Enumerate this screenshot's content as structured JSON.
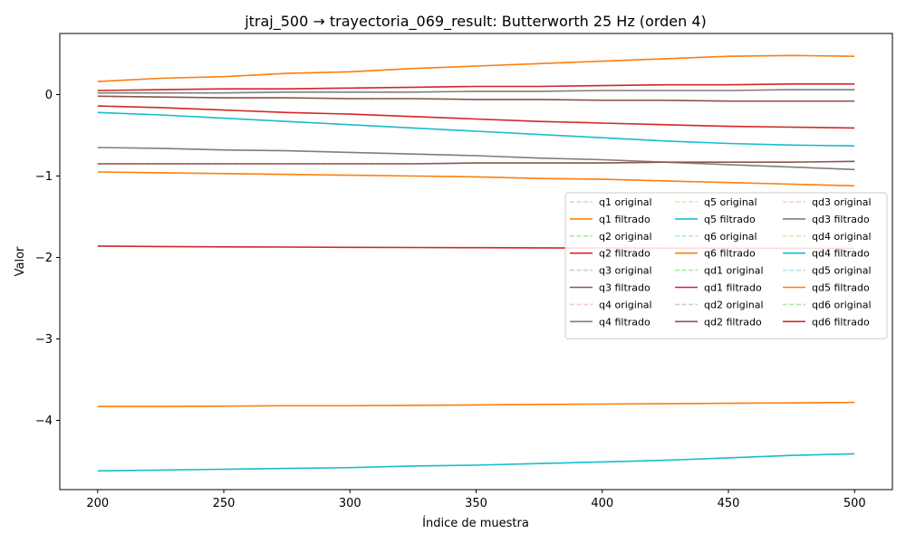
{
  "chart_data": {
    "type": "line",
    "title": "jtraj_500 → trayectoria_069_result: Butterworth 25 Hz (orden 4)",
    "xlabel": "Índice de muestra",
    "ylabel": "Valor",
    "xlim": [
      185,
      515
    ],
    "ylim": [
      -4.85,
      0.75
    ],
    "xticks": [
      200,
      250,
      300,
      350,
      400,
      450,
      500
    ],
    "yticks": [
      0,
      -1,
      -2,
      -3,
      -4
    ],
    "ytick_labels": [
      "0",
      "−1",
      "−2",
      "−3",
      "−4"
    ],
    "grid": false,
    "legend_position": "center-right",
    "legend_columns": 3,
    "x": [
      200,
      225,
      250,
      275,
      300,
      325,
      350,
      375,
      400,
      425,
      450,
      475,
      500
    ],
    "series": [
      {
        "name": "q1 original",
        "color": "#aec7e8",
        "dashed": true,
        "values": [
          0.16,
          0.2,
          0.22,
          0.26,
          0.28,
          0.32,
          0.35,
          0.38,
          0.41,
          0.44,
          0.47,
          0.48,
          0.47
        ]
      },
      {
        "name": "q1 filtrado",
        "color": "#ff7f0e",
        "dashed": false,
        "values": [
          0.16,
          0.2,
          0.22,
          0.26,
          0.28,
          0.32,
          0.35,
          0.38,
          0.41,
          0.44,
          0.47,
          0.48,
          0.47
        ]
      },
      {
        "name": "q2 original",
        "color": "#98df8a",
        "dashed": true,
        "values": [
          0.05,
          0.06,
          0.07,
          0.07,
          0.08,
          0.09,
          0.1,
          0.1,
          0.11,
          0.12,
          0.12,
          0.13,
          0.13
        ]
      },
      {
        "name": "q2 filtrado",
        "color": "#d62728",
        "dashed": false,
        "values": [
          0.05,
          0.06,
          0.07,
          0.07,
          0.08,
          0.09,
          0.1,
          0.1,
          0.11,
          0.12,
          0.12,
          0.13,
          0.13
        ]
      },
      {
        "name": "q3 original",
        "color": "#c5b0d5",
        "dashed": true,
        "values": [
          -0.02,
          -0.03,
          -0.04,
          -0.04,
          -0.05,
          -0.05,
          -0.06,
          -0.06,
          -0.07,
          -0.07,
          -0.08,
          -0.08,
          -0.08
        ]
      },
      {
        "name": "q3 filtrado",
        "color": "#8c564b",
        "dashed": false,
        "values": [
          -0.02,
          -0.03,
          -0.04,
          -0.04,
          -0.05,
          -0.05,
          -0.06,
          -0.06,
          -0.07,
          -0.07,
          -0.08,
          -0.08,
          -0.08
        ]
      },
      {
        "name": "q4 original",
        "color": "#f7b6d2",
        "dashed": true,
        "values": [
          -0.65,
          -0.66,
          -0.68,
          -0.69,
          -0.71,
          -0.73,
          -0.75,
          -0.78,
          -0.8,
          -0.83,
          -0.86,
          -0.89,
          -0.92
        ]
      },
      {
        "name": "q4 filtrado",
        "color": "#7f7f7f",
        "dashed": false,
        "values": [
          -0.65,
          -0.66,
          -0.68,
          -0.69,
          -0.71,
          -0.73,
          -0.75,
          -0.78,
          -0.8,
          -0.83,
          -0.86,
          -0.89,
          -0.92
        ]
      },
      {
        "name": "q5 original",
        "color": "#dbdb8d",
        "dashed": true,
        "values": [
          -0.22,
          -0.25,
          -0.29,
          -0.33,
          -0.37,
          -0.41,
          -0.45,
          -0.49,
          -0.53,
          -0.57,
          -0.6,
          -0.62,
          -0.63
        ]
      },
      {
        "name": "q5 filtrado",
        "color": "#17becf",
        "dashed": false,
        "values": [
          -0.22,
          -0.25,
          -0.29,
          -0.33,
          -0.37,
          -0.41,
          -0.45,
          -0.49,
          -0.53,
          -0.57,
          -0.6,
          -0.62,
          -0.63
        ]
      },
      {
        "name": "q6 original",
        "color": "#9edae5",
        "dashed": true,
        "values": [
          -0.95,
          -0.96,
          -0.97,
          -0.98,
          -0.99,
          -1.0,
          -1.01,
          -1.03,
          -1.04,
          -1.06,
          -1.08,
          -1.1,
          -1.12
        ]
      },
      {
        "name": "q6 filtrado",
        "color": "#ff7f0e",
        "dashed": false,
        "values": [
          -0.95,
          -0.96,
          -0.97,
          -0.98,
          -0.99,
          -1.0,
          -1.01,
          -1.03,
          -1.04,
          -1.06,
          -1.08,
          -1.1,
          -1.12
        ]
      },
      {
        "name": "qd1 original",
        "color": "#98df8a",
        "dashed": true,
        "values": [
          -1.86,
          -1.865,
          -1.87,
          -1.872,
          -1.875,
          -1.878,
          -1.88,
          -1.882,
          -1.884,
          -1.886,
          -1.887,
          -1.888,
          -1.89
        ]
      },
      {
        "name": "qd1 filtrado",
        "color": "#d62728",
        "dashed": false,
        "values": [
          -1.86,
          -1.865,
          -1.87,
          -1.872,
          -1.875,
          -1.878,
          -1.88,
          -1.882,
          -1.884,
          -1.886,
          -1.887,
          -1.888,
          -1.89
        ]
      },
      {
        "name": "qd2 original",
        "color": "#c5b0d5",
        "dashed": true,
        "values": [
          -0.85,
          -0.85,
          -0.85,
          -0.85,
          -0.85,
          -0.85,
          -0.84,
          -0.84,
          -0.84,
          -0.83,
          -0.83,
          -0.83,
          -0.82
        ]
      },
      {
        "name": "qd2 filtrado",
        "color": "#8c564b",
        "dashed": false,
        "values": [
          -0.85,
          -0.85,
          -0.85,
          -0.85,
          -0.85,
          -0.85,
          -0.84,
          -0.84,
          -0.84,
          -0.83,
          -0.83,
          -0.83,
          -0.82
        ]
      },
      {
        "name": "qd3 original",
        "color": "#f7b6d2",
        "dashed": true,
        "values": [
          0.02,
          0.02,
          0.02,
          0.03,
          0.03,
          0.03,
          0.04,
          0.04,
          0.05,
          0.05,
          0.05,
          0.06,
          0.06
        ]
      },
      {
        "name": "qd3 filtrado",
        "color": "#7f7f7f",
        "dashed": false,
        "values": [
          0.02,
          0.02,
          0.02,
          0.03,
          0.03,
          0.03,
          0.04,
          0.04,
          0.05,
          0.05,
          0.05,
          0.06,
          0.06
        ]
      },
      {
        "name": "qd4 original",
        "color": "#dbdb8d",
        "dashed": true,
        "values": [
          -4.62,
          -4.61,
          -4.6,
          -4.59,
          -4.58,
          -4.56,
          -4.55,
          -4.53,
          -4.51,
          -4.49,
          -4.46,
          -4.43,
          -4.41
        ]
      },
      {
        "name": "qd4 filtrado",
        "color": "#17becf",
        "dashed": false,
        "values": [
          -4.62,
          -4.61,
          -4.6,
          -4.59,
          -4.58,
          -4.56,
          -4.55,
          -4.53,
          -4.51,
          -4.49,
          -4.46,
          -4.43,
          -4.41
        ]
      },
      {
        "name": "qd5 original",
        "color": "#9edae5",
        "dashed": true,
        "values": [
          -3.83,
          -3.83,
          -3.825,
          -3.82,
          -3.82,
          -3.815,
          -3.81,
          -3.805,
          -3.8,
          -3.795,
          -3.79,
          -3.785,
          -3.78
        ]
      },
      {
        "name": "qd5 filtrado",
        "color": "#ff7f0e",
        "dashed": false,
        "values": [
          -3.83,
          -3.83,
          -3.825,
          -3.82,
          -3.82,
          -3.815,
          -3.81,
          -3.805,
          -3.8,
          -3.795,
          -3.79,
          -3.785,
          -3.78
        ]
      },
      {
        "name": "qd6 original",
        "color": "#98df8a",
        "dashed": true,
        "values": [
          -0.14,
          -0.16,
          -0.19,
          -0.22,
          -0.24,
          -0.27,
          -0.3,
          -0.33,
          -0.35,
          -0.37,
          -0.39,
          -0.4,
          -0.41
        ]
      },
      {
        "name": "qd6 filtrado",
        "color": "#d62728",
        "dashed": false,
        "values": [
          -0.14,
          -0.16,
          -0.19,
          -0.22,
          -0.24,
          -0.27,
          -0.3,
          -0.33,
          -0.35,
          -0.37,
          -0.39,
          -0.4,
          -0.41
        ]
      }
    ]
  }
}
